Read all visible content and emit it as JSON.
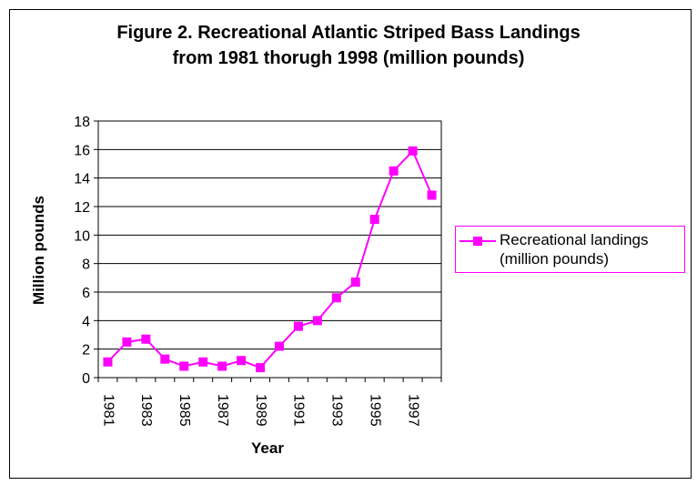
{
  "chart_data": {
    "type": "line",
    "title": [
      "Figure 2.  Recreational Atlantic Striped Bass Landings",
      "from 1981 thorugh 1998 (million pounds)"
    ],
    "xlabel": "Year",
    "ylabel": "Million pounds",
    "x": [
      1981,
      1982,
      1983,
      1984,
      1985,
      1986,
      1987,
      1988,
      1989,
      1990,
      1991,
      1992,
      1993,
      1994,
      1995,
      1996,
      1997,
      1998
    ],
    "x_tick_labels": [
      "1981",
      "1983",
      "1985",
      "1987",
      "1989",
      "1991",
      "1993",
      "1995",
      "1997"
    ],
    "ylim": [
      0,
      18
    ],
    "y_ticks": [
      "0",
      "2",
      "4",
      "6",
      "8",
      "10",
      "12",
      "14",
      "16",
      "18"
    ],
    "grid": "horizontal",
    "legend_position": "right",
    "series": [
      {
        "name": [
          "Recreational landings",
          "(million pounds)"
        ],
        "color": "#ff00ff",
        "marker": "square",
        "values": [
          1.1,
          2.5,
          2.7,
          1.3,
          0.8,
          1.1,
          0.8,
          1.2,
          0.7,
          2.2,
          3.6,
          4.0,
          5.6,
          6.7,
          11.1,
          14.5,
          15.9,
          12.8
        ]
      }
    ]
  }
}
